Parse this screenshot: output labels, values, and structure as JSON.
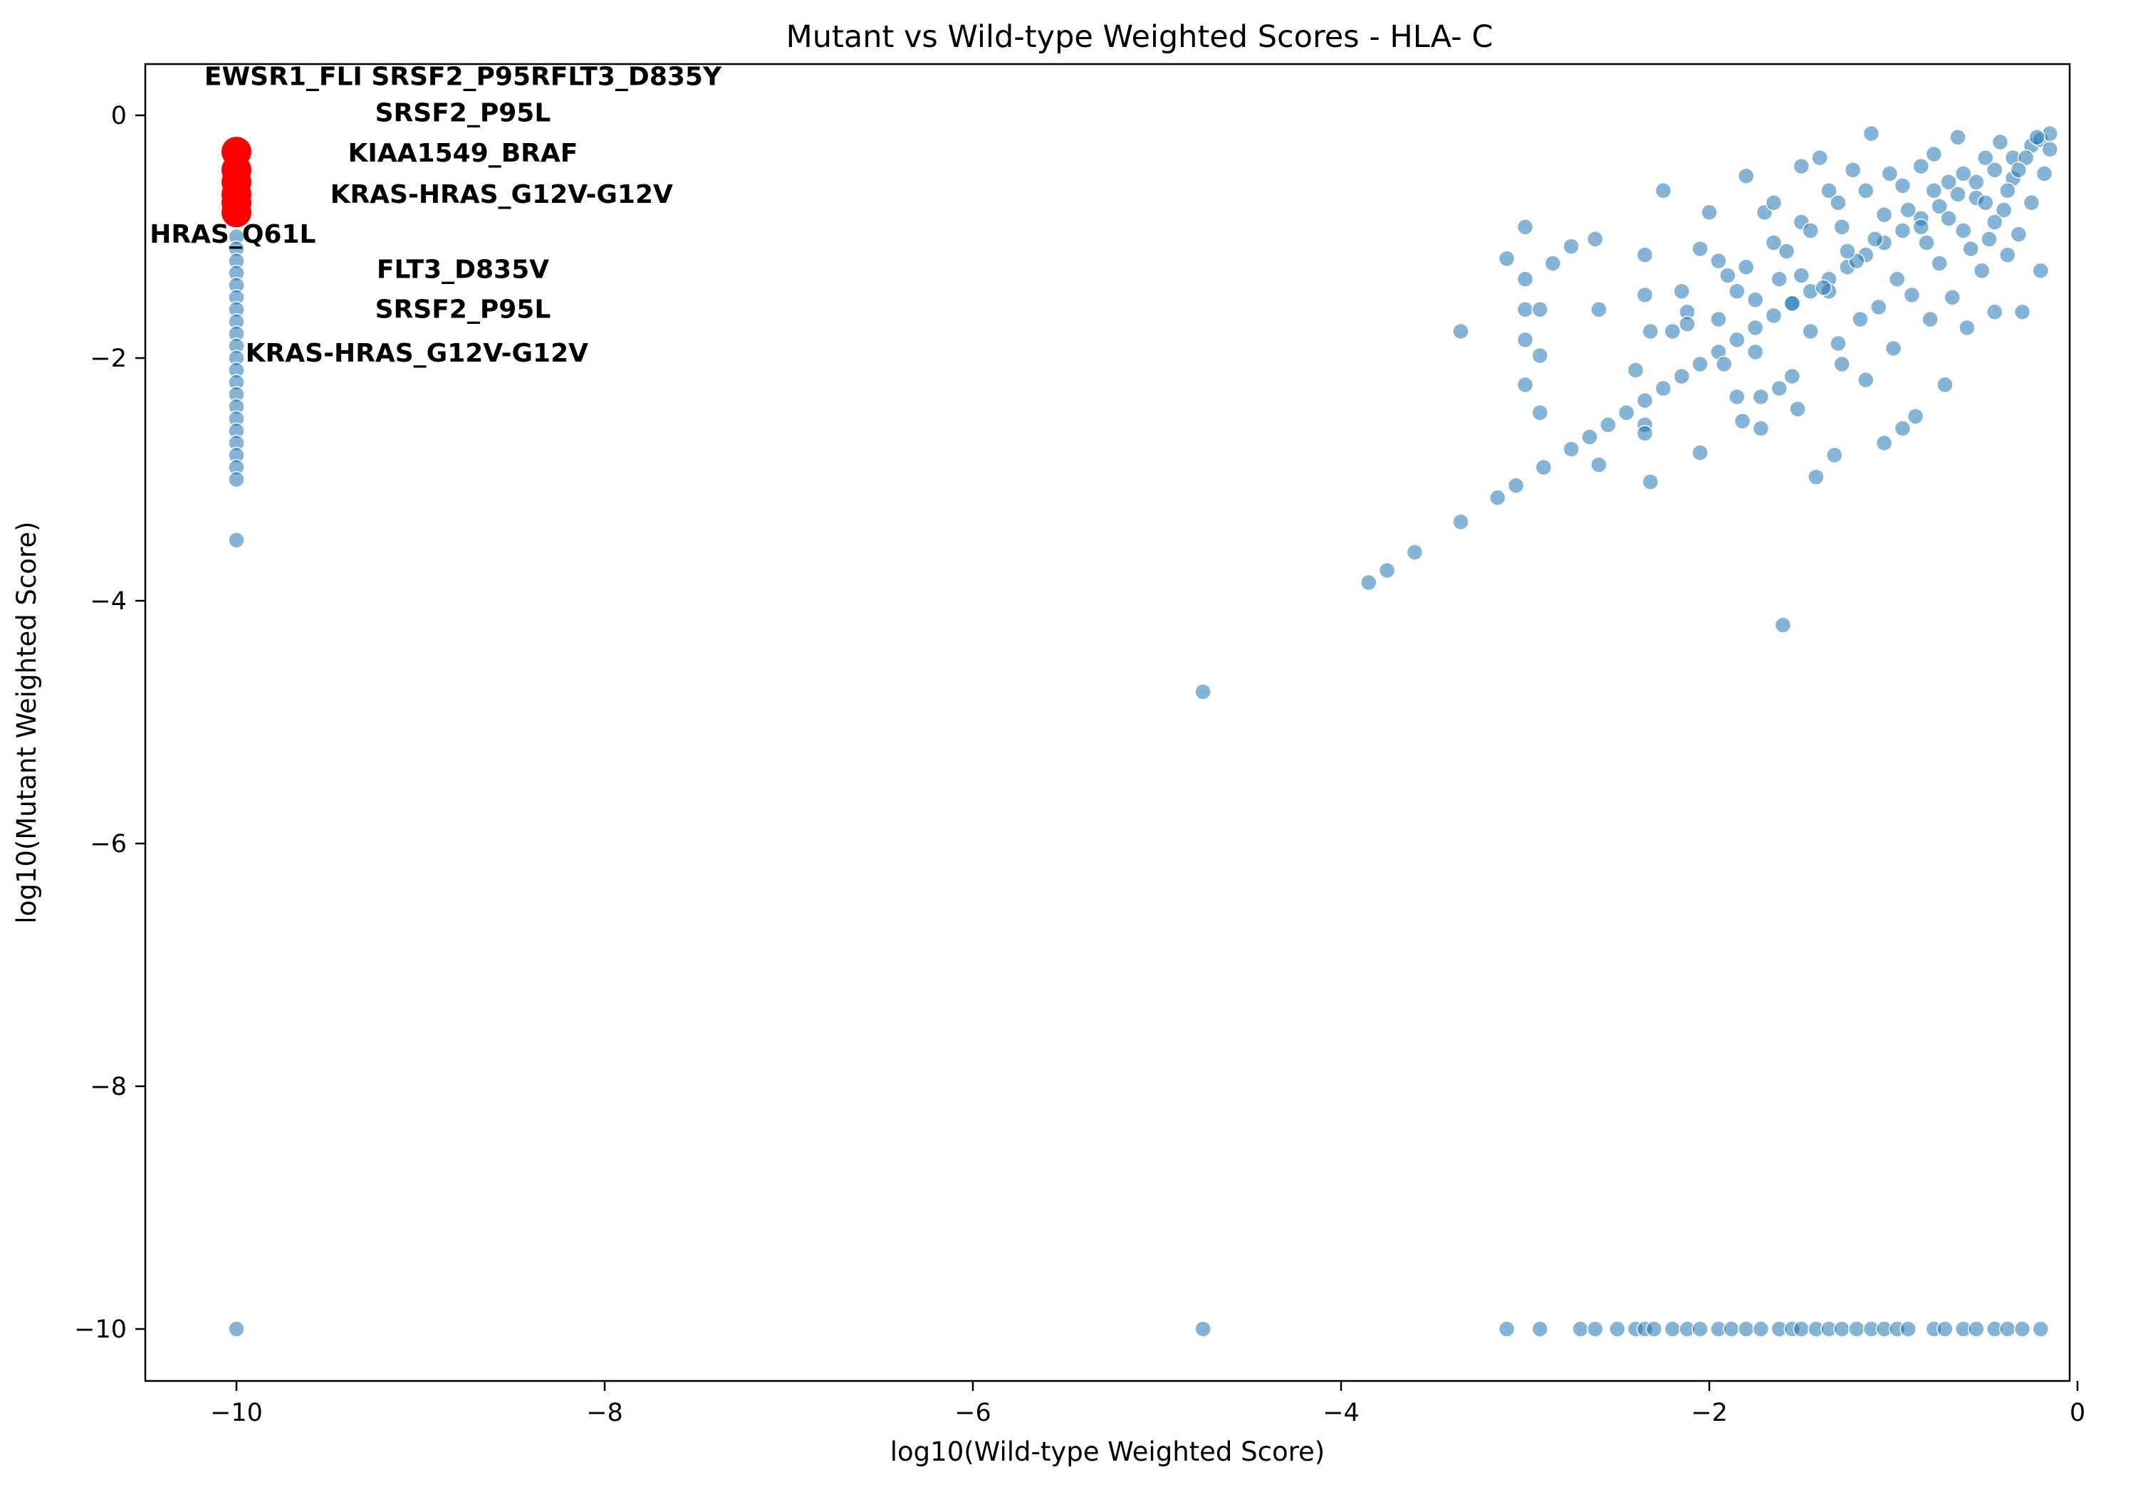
{
  "chart_data": {
    "type": "scatter",
    "title": "Mutant vs Wild-type Weighted Scores - HLA- C",
    "xlabel": "log10(Wild-type Weighted Score)",
    "ylabel": "log10(Mutant Weighted Score)",
    "xlim": [
      -10.5,
      0.5
    ],
    "ylim": [
      -10.5,
      0.4
    ],
    "x_ticks": [
      -10,
      -8,
      -6,
      -4,
      -2,
      0
    ],
    "y_ticks": [
      -10,
      -8,
      -6,
      -4,
      -2,
      0
    ],
    "x_tick_labels": [
      "−10",
      "−8",
      "−6",
      "−4",
      "−2",
      "0"
    ],
    "y_tick_labels": [
      "−10",
      "−8",
      "−6",
      "−4",
      "−2",
      "0"
    ],
    "grid": false,
    "colors": {
      "background": "#1f77b4",
      "highlight": "#ff0000"
    },
    "series": [
      {
        "points": [
          [
            -10,
            -1.0
          ],
          [
            -10,
            -1.1
          ],
          [
            -10,
            -1.2
          ],
          [
            -10,
            -1.3
          ],
          [
            -10,
            -1.4
          ],
          [
            -10,
            -1.5
          ],
          [
            -10,
            -1.6
          ],
          [
            -10,
            -1.7
          ],
          [
            -10,
            -1.8
          ],
          [
            -10,
            -1.9
          ],
          [
            -10,
            -2.0
          ],
          [
            -10,
            -2.1
          ],
          [
            -10,
            -2.2
          ],
          [
            -10,
            -2.3
          ],
          [
            -10,
            -2.4
          ],
          [
            -10,
            -2.5
          ],
          [
            -10,
            -2.6
          ],
          [
            -10,
            -2.7
          ],
          [
            -10,
            -2.8
          ],
          [
            -10,
            -2.9
          ],
          [
            -10,
            -3.0
          ],
          [
            -10,
            -3.5
          ],
          [
            -10,
            -10.0
          ],
          [
            -4.75,
            -4.75
          ],
          [
            -4.75,
            -10.0
          ],
          [
            -3.85,
            -3.85
          ],
          [
            -3.75,
            -3.75
          ],
          [
            -3.6,
            -3.6
          ],
          [
            -3.35,
            -3.35
          ],
          [
            -3.15,
            -3.15
          ],
          [
            -3.05,
            -3.05
          ],
          [
            -2.9,
            -2.9
          ],
          [
            -2.75,
            -2.75
          ],
          [
            -2.65,
            -2.65
          ],
          [
            -2.55,
            -2.55
          ],
          [
            -2.45,
            -2.45
          ],
          [
            -2.35,
            -2.35
          ],
          [
            -2.25,
            -2.25
          ],
          [
            -2.15,
            -2.15
          ],
          [
            -2.05,
            -2.05
          ],
          [
            -1.95,
            -1.95
          ],
          [
            -1.85,
            -1.85
          ],
          [
            -1.75,
            -1.75
          ],
          [
            -1.65,
            -1.65
          ],
          [
            -1.55,
            -1.55
          ],
          [
            -1.45,
            -1.45
          ],
          [
            -1.35,
            -1.35
          ],
          [
            -1.25,
            -1.25
          ],
          [
            -1.15,
            -1.15
          ],
          [
            -1.05,
            -1.05
          ],
          [
            -0.95,
            -0.95
          ],
          [
            -0.85,
            -0.85
          ],
          [
            -0.75,
            -0.75
          ],
          [
            -0.65,
            -0.65
          ],
          [
            -0.55,
            -0.55
          ],
          [
            -0.45,
            -0.45
          ],
          [
            -0.35,
            -0.35
          ],
          [
            -0.25,
            -0.25
          ],
          [
            -0.2,
            -0.2
          ],
          [
            -0.15,
            -0.15
          ],
          [
            -3.35,
            -1.78
          ],
          [
            -3.1,
            -1.18
          ],
          [
            -3.0,
            -0.92
          ],
          [
            -3.0,
            -1.35
          ],
          [
            -3.0,
            -1.6
          ],
          [
            -3.0,
            -1.85
          ],
          [
            -3.0,
            -2.22
          ],
          [
            -2.92,
            -1.6
          ],
          [
            -2.92,
            -1.98
          ],
          [
            -2.92,
            -2.45
          ],
          [
            -2.85,
            -1.22
          ],
          [
            -2.75,
            -1.08
          ],
          [
            -2.62,
            -1.02
          ],
          [
            -2.6,
            -1.6
          ],
          [
            -2.6,
            -2.88
          ],
          [
            -2.35,
            -1.15
          ],
          [
            -2.35,
            -1.48
          ],
          [
            -2.35,
            -2.55
          ],
          [
            -2.35,
            -2.62
          ],
          [
            -2.32,
            -1.78
          ],
          [
            -2.32,
            -3.02
          ],
          [
            -2.25,
            -0.62
          ],
          [
            -2.15,
            -1.45
          ],
          [
            -2.12,
            -1.62
          ],
          [
            -2.12,
            -1.72
          ],
          [
            -2.05,
            -1.1
          ],
          [
            -2.05,
            -2.78
          ],
          [
            -2.0,
            -0.8
          ],
          [
            -1.95,
            -1.68
          ],
          [
            -1.92,
            -2.05
          ],
          [
            -1.85,
            -1.45
          ],
          [
            -1.85,
            -2.32
          ],
          [
            -1.82,
            -2.52
          ],
          [
            -1.8,
            -0.5
          ],
          [
            -1.8,
            -1.25
          ],
          [
            -1.75,
            -1.95
          ],
          [
            -1.72,
            -2.32
          ],
          [
            -1.72,
            -2.58
          ],
          [
            -1.7,
            -0.8
          ],
          [
            -1.65,
            -1.05
          ],
          [
            -1.62,
            -1.35
          ],
          [
            -1.62,
            -2.25
          ],
          [
            -1.6,
            -4.2
          ],
          [
            -1.55,
            -1.55
          ],
          [
            -1.55,
            -2.15
          ],
          [
            -1.52,
            -2.42
          ],
          [
            -1.5,
            -0.42
          ],
          [
            -1.5,
            -0.88
          ],
          [
            -1.45,
            -1.78
          ],
          [
            -1.42,
            -2.98
          ],
          [
            -1.4,
            -0.35
          ],
          [
            -1.35,
            -0.62
          ],
          [
            -1.35,
            -1.45
          ],
          [
            -1.32,
            -2.8
          ],
          [
            -1.3,
            -1.88
          ],
          [
            -1.28,
            -2.05
          ],
          [
            -1.22,
            -0.45
          ],
          [
            -1.2,
            -1.2
          ],
          [
            -1.18,
            -1.68
          ],
          [
            -1.15,
            -2.18
          ],
          [
            -1.12,
            -0.15
          ],
          [
            -1.1,
            -1.02
          ],
          [
            -1.08,
            -1.58
          ],
          [
            -1.05,
            -2.7
          ],
          [
            -1.02,
            -0.48
          ],
          [
            -1.0,
            -1.92
          ],
          [
            -0.98,
            -1.35
          ],
          [
            -0.95,
            -2.58
          ],
          [
            -0.92,
            -0.78
          ],
          [
            -0.9,
            -1.48
          ],
          [
            -0.88,
            -2.48
          ],
          [
            -0.85,
            -0.42
          ],
          [
            -0.82,
            -1.05
          ],
          [
            -0.8,
            -1.68
          ],
          [
            -0.78,
            -0.32
          ],
          [
            -0.75,
            -1.22
          ],
          [
            -0.72,
            -2.22
          ],
          [
            -0.7,
            -0.55
          ],
          [
            -0.68,
            -1.5
          ],
          [
            -0.65,
            -0.18
          ],
          [
            -0.62,
            -0.95
          ],
          [
            -0.6,
            -1.75
          ],
          [
            -0.55,
            -0.68
          ],
          [
            -0.52,
            -1.28
          ],
          [
            -0.5,
            -0.35
          ],
          [
            -0.48,
            -1.02
          ],
          [
            -0.45,
            -1.62
          ],
          [
            -0.42,
            -0.22
          ],
          [
            -0.4,
            -0.78
          ],
          [
            -0.38,
            -1.15
          ],
          [
            -0.35,
            -0.52
          ],
          [
            -0.32,
            -0.98
          ],
          [
            -0.3,
            -1.62
          ],
          [
            -0.28,
            -0.35
          ],
          [
            -0.25,
            -0.72
          ],
          [
            -0.22,
            -0.18
          ],
          [
            -0.2,
            -1.28
          ],
          [
            -0.18,
            -0.48
          ],
          [
            -0.15,
            -0.28
          ],
          [
            -1.45,
            -0.95
          ],
          [
            -1.3,
            -0.72
          ],
          [
            -1.25,
            -1.12
          ],
          [
            -1.15,
            -0.62
          ],
          [
            -1.05,
            -0.82
          ],
          [
            -0.95,
            -0.58
          ],
          [
            -0.85,
            -0.92
          ],
          [
            -0.78,
            -0.62
          ],
          [
            -0.7,
            -0.85
          ],
          [
            -0.62,
            -0.48
          ],
          [
            -0.58,
            -1.1
          ],
          [
            -0.5,
            -0.72
          ],
          [
            -0.45,
            -0.88
          ],
          [
            -0.38,
            -0.62
          ],
          [
            -0.32,
            -0.45
          ],
          [
            -1.65,
            -0.72
          ],
          [
            -1.58,
            -1.12
          ],
          [
            -1.5,
            -1.32
          ],
          [
            -1.38,
            -1.42
          ],
          [
            -1.28,
            -0.92
          ],
          [
            -1.9,
            -1.32
          ],
          [
            -1.75,
            -1.52
          ],
          [
            -1.95,
            -1.2
          ],
          [
            -2.2,
            -1.78
          ],
          [
            -2.4,
            -2.1
          ],
          [
            -3.1,
            -10.0
          ],
          [
            -2.92,
            -10.0
          ],
          [
            -2.7,
            -10.0
          ],
          [
            -2.62,
            -10.0
          ],
          [
            -2.5,
            -10.0
          ],
          [
            -2.4,
            -10.0
          ],
          [
            -2.35,
            -10.0
          ],
          [
            -2.3,
            -10.0
          ],
          [
            -2.2,
            -10.0
          ],
          [
            -2.12,
            -10.0
          ],
          [
            -2.05,
            -10.0
          ],
          [
            -1.95,
            -10.0
          ],
          [
            -1.88,
            -10.0
          ],
          [
            -1.8,
            -10.0
          ],
          [
            -1.72,
            -10.0
          ],
          [
            -1.62,
            -10.0
          ],
          [
            -1.55,
            -10.0
          ],
          [
            -1.5,
            -10.0
          ],
          [
            -1.42,
            -10.0
          ],
          [
            -1.35,
            -10.0
          ],
          [
            -1.28,
            -10.0
          ],
          [
            -1.2,
            -10.0
          ],
          [
            -1.12,
            -10.0
          ],
          [
            -1.05,
            -10.0
          ],
          [
            -0.98,
            -10.0
          ],
          [
            -0.92,
            -10.0
          ],
          [
            -0.78,
            -10.0
          ],
          [
            -0.72,
            -10.0
          ],
          [
            -0.62,
            -10.0
          ],
          [
            -0.55,
            -10.0
          ],
          [
            -0.45,
            -10.0
          ],
          [
            -0.38,
            -10.0
          ],
          [
            -0.3,
            -10.0
          ],
          [
            -0.2,
            -10.0
          ]
        ]
      },
      {
        "points": [
          [
            -10,
            -0.3
          ],
          [
            -10,
            -0.45
          ],
          [
            -10,
            -0.55
          ],
          [
            -10,
            -0.65
          ],
          [
            -10,
            -0.72
          ],
          [
            -10,
            -0.8
          ]
        ]
      }
    ],
    "annotations": [
      {
        "text": "EWSR1_FLI SRSF2_P95RFLT3_D835Y",
        "x": -8.77,
        "y": 0.25
      },
      {
        "text": "SRSF2_P95L",
        "x": -8.77,
        "y": -0.05
      },
      {
        "text": "KIAA1549_BRAF",
        "x": -8.77,
        "y": -0.38
      },
      {
        "text": "KRAS-HRAS_G12V-G12V",
        "x": -8.56,
        "y": -0.72
      },
      {
        "text": "HRAS_Q61L",
        "x": -10.02,
        "y": -1.05
      },
      {
        "text": "FLT3_D835V",
        "x": -8.77,
        "y": -1.34
      },
      {
        "text": "SRSF2_P95L",
        "x": -8.77,
        "y": -1.67
      },
      {
        "text": "KRAS-HRAS_G12V-G12V",
        "x": -9.02,
        "y": -2.03
      }
    ]
  }
}
